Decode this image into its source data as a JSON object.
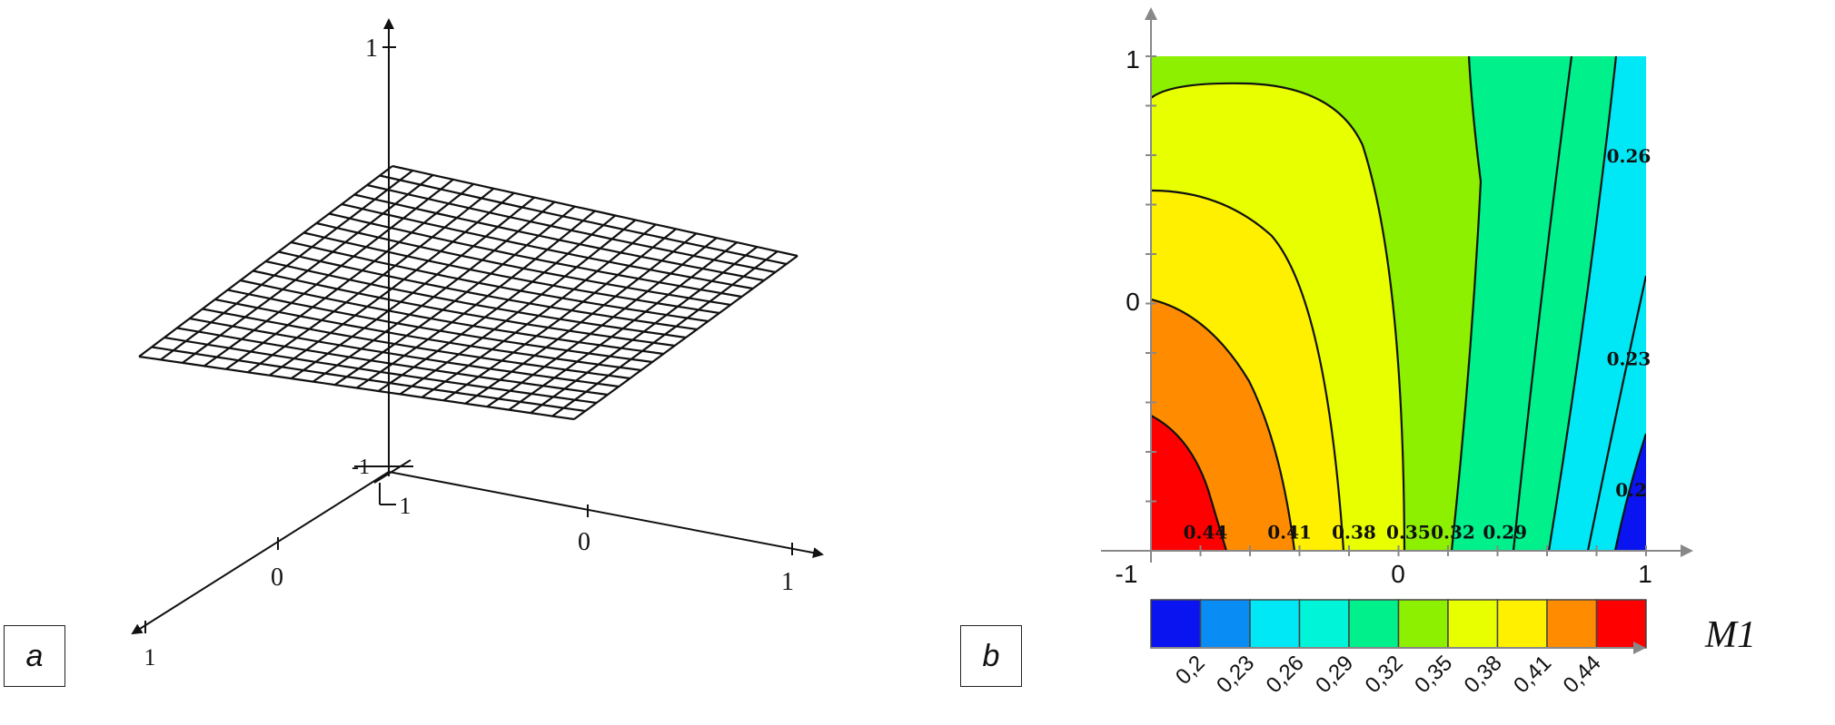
{
  "panels": {
    "a_label": "a",
    "b_label": "b"
  },
  "chart_data": [
    {
      "type": "surface",
      "title": "",
      "axes": {
        "z_max_label": "1",
        "origin_label_1": "-1",
        "origin_label_2": "1",
        "x_tick_labels": [
          "0",
          "1"
        ],
        "y_tick_labels": [
          "0",
          "1"
        ]
      },
      "grid_divisions": 20
    },
    {
      "type": "heatmap",
      "subtype": "contour",
      "title": "",
      "xlim": [
        -1,
        1
      ],
      "ylim": [
        -1,
        1
      ],
      "x_tick_labels": [
        "-1",
        "0",
        "1"
      ],
      "y_tick_labels": [
        "0",
        "1"
      ],
      "contour_levels": [
        0.2,
        0.23,
        0.26,
        0.29,
        0.32,
        0.35,
        0.38,
        0.41,
        0.44
      ],
      "contour_labels": [
        {
          "text": "0.44",
          "x": -0.78,
          "y": -0.95
        },
        {
          "text": "0.41",
          "x": -0.44,
          "y": -0.95
        },
        {
          "text": "0.38",
          "x": -0.18,
          "y": -0.95
        },
        {
          "text": "0.35",
          "x": 0.04,
          "y": -0.95
        },
        {
          "text": "0.32",
          "x": 0.22,
          "y": -0.95
        },
        {
          "text": "0.29",
          "x": 0.43,
          "y": -0.95
        },
        {
          "text": "0.26",
          "x": 0.93,
          "y": 0.57
        },
        {
          "text": "0.23",
          "x": 0.93,
          "y": -0.25
        },
        {
          "text": "0.2",
          "x": 0.94,
          "y": -0.78
        }
      ],
      "colorbar": {
        "title": "M1",
        "tick_labels": [
          "0,2",
          "0,23",
          "0,26",
          "0,29",
          "0,32",
          "0,35",
          "0,38",
          "0,41",
          "0,44"
        ],
        "colors": [
          "#0a14f0",
          "#0a8cf5",
          "#00e8f5",
          "#00f5d8",
          "#00f08c",
          "#8cf000",
          "#e8ff00",
          "#fff000",
          "#ff8c00",
          "#ff0000"
        ]
      }
    }
  ]
}
